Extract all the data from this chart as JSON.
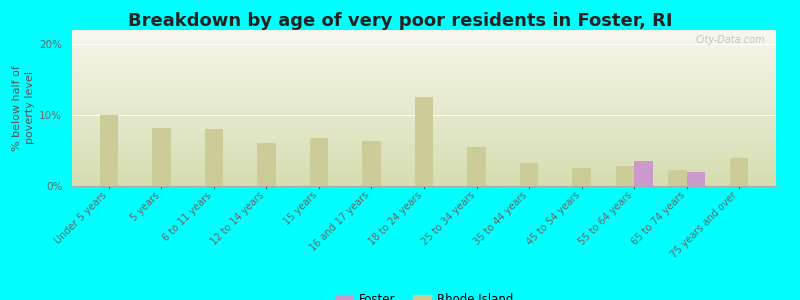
{
  "title": "Breakdown by age of very poor residents in Foster, RI",
  "ylabel": "% below half of\npoverty level",
  "background_color": "#00FFFF",
  "plot_bg_top": "#f7f7ec",
  "plot_bg_bottom": "#d6ddb0",
  "categories": [
    "Under 5 years",
    "5 years",
    "6 to 11 years",
    "12 to 14 years",
    "15 years",
    "16 and 17 years",
    "18 to 24 years",
    "25 to 34 years",
    "35 to 44 years",
    "45 to 54 years",
    "55 to 64 years",
    "65 to 74 years",
    "75 years and over"
  ],
  "foster_values": [
    0,
    0,
    0,
    0,
    0,
    0,
    0,
    0,
    0,
    0,
    3.5,
    2.0,
    0
  ],
  "ri_values": [
    10.0,
    8.2,
    8.0,
    6.0,
    6.8,
    6.3,
    12.5,
    5.5,
    3.2,
    2.5,
    2.8,
    2.3,
    4.0
  ],
  "foster_color": "#cc99cc",
  "ri_color": "#cccc99",
  "ylim": [
    0,
    22
  ],
  "yticks": [
    0,
    10,
    20
  ],
  "ytick_labels": [
    "0%",
    "10%",
    "20%"
  ],
  "title_fontsize": 13,
  "axis_label_fontsize": 8,
  "tick_fontsize": 7.5,
  "legend_foster": "Foster",
  "legend_ri": "Rhode Island",
  "watermark": "City-Data.com"
}
